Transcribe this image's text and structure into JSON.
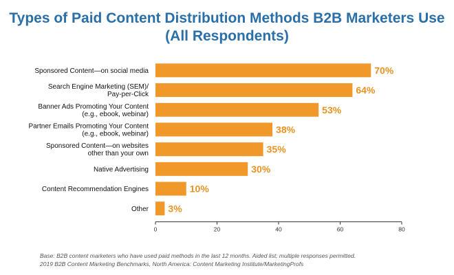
{
  "title_line1": "Types of Paid Content Distribution Methods B2B Marketers Use",
  "title_line2": "(All Respondents)",
  "footnote": {
    "base": "Base: B2B content marketers who have used paid methods in the last 12 months. Aided list; multiple responses permitted.",
    "source": "2019 B2B Content Marketing Benchmarks, North America: Content Marketing Institute/MarketingProfs"
  },
  "colors": {
    "bar": "#f0982a",
    "label": "#e8921f",
    "title": "#2a6fa8",
    "axis": "#333333"
  },
  "chart_data": {
    "type": "bar",
    "orientation": "horizontal",
    "categories": [
      [
        "Sponsored Content—on social media"
      ],
      [
        "Search Engine Marketing (SEM)/",
        "Pay-per-Click"
      ],
      [
        "Banner Ads Promoting Your Content",
        "(e.g., ebook, webinar)"
      ],
      [
        "Partner Emails Promoting Your Content",
        "(e.g., ebook, webinar)"
      ],
      [
        "Sponsored Content—on websites",
        "other than your own"
      ],
      [
        "Native Advertising"
      ],
      [
        "Content Recommendation Engines"
      ],
      [
        "Other"
      ]
    ],
    "values": [
      70,
      64,
      53,
      38,
      35,
      30,
      10,
      3
    ],
    "value_labels": [
      "70%",
      "64%",
      "53%",
      "38%",
      "35%",
      "30%",
      "10%",
      "3%"
    ],
    "xlim": [
      0,
      80
    ],
    "xticks": [
      0,
      20,
      40,
      60,
      80
    ],
    "grid": false
  }
}
